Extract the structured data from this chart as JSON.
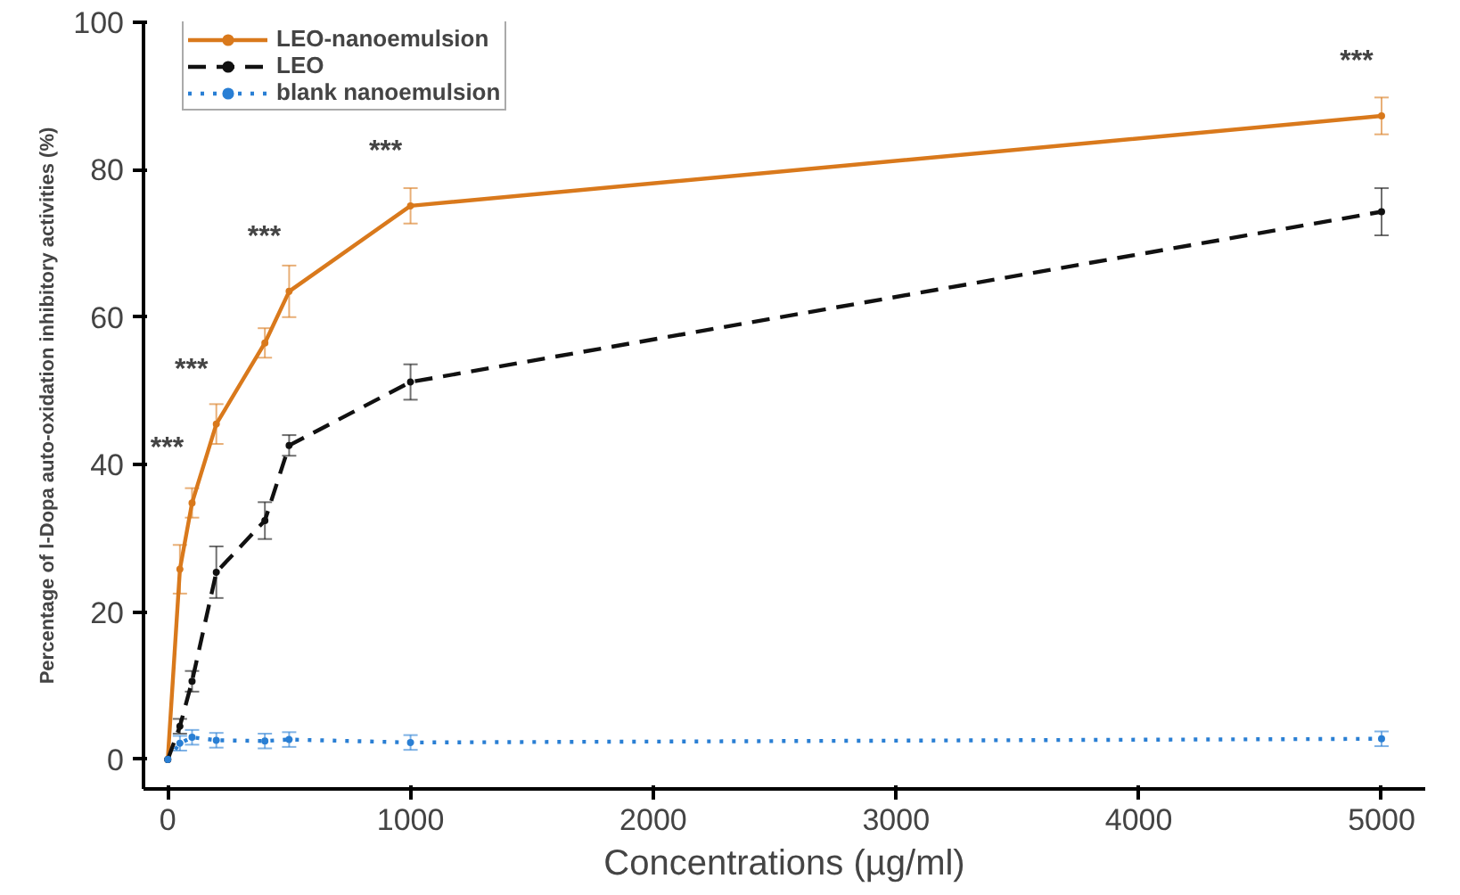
{
  "chart_data": {
    "type": "line",
    "xlabel": "Concentrations (µg/ml)",
    "ylabel": "Percentage of l-Dopa auto-oxidation inhibitory activities (%)",
    "x": [
      0,
      50,
      100,
      200,
      400,
      500,
      1000,
      5000
    ],
    "series": [
      {
        "name": "LEO-nanoemulsion",
        "color": "#d9791c",
        "line_style": "solid",
        "values": [
          0,
          25.8,
          34.8,
          45.5,
          56.5,
          63.5,
          75.1,
          87.3
        ],
        "errors": [
          null,
          3.3,
          2,
          2.7,
          2,
          3.5,
          2.4,
          2.5
        ]
      },
      {
        "name": "LEO",
        "color": "#111111",
        "line_style": "dashed",
        "values": [
          0,
          4.5,
          10.6,
          25.4,
          32.4,
          42.6,
          51.2,
          74.3
        ],
        "errors": [
          null,
          1,
          1.4,
          3.5,
          2.5,
          1.4,
          2.4,
          3.2
        ]
      },
      {
        "name": "blank nanoemulsion",
        "color": "#2a7fd4",
        "line_style": "dotted",
        "values": [
          0,
          2.2,
          3,
          2.6,
          2.5,
          2.7,
          2.3,
          2.8
        ],
        "errors": [
          null,
          1,
          1,
          1,
          1,
          1,
          1,
          1
        ]
      }
    ],
    "annotations": [
      {
        "text": "***",
        "x": 100,
        "y": 34.8
      },
      {
        "text": "***",
        "x": 200,
        "y": 45.5
      },
      {
        "text": "***",
        "x": 500,
        "y": 63.5
      },
      {
        "text": "***",
        "x": 1000,
        "y": 75.1
      },
      {
        "text": "***",
        "x": 5000,
        "y": 87.3
      }
    ],
    "xlim": [
      -100,
      5180
    ],
    "ylim": [
      -4,
      100
    ],
    "xticks": [
      0,
      1000,
      2000,
      3000,
      4000,
      5000
    ],
    "yticks": [
      0,
      20,
      40,
      60,
      80,
      100
    ],
    "grid": false,
    "legend": "top left",
    "marker": "circle"
  }
}
